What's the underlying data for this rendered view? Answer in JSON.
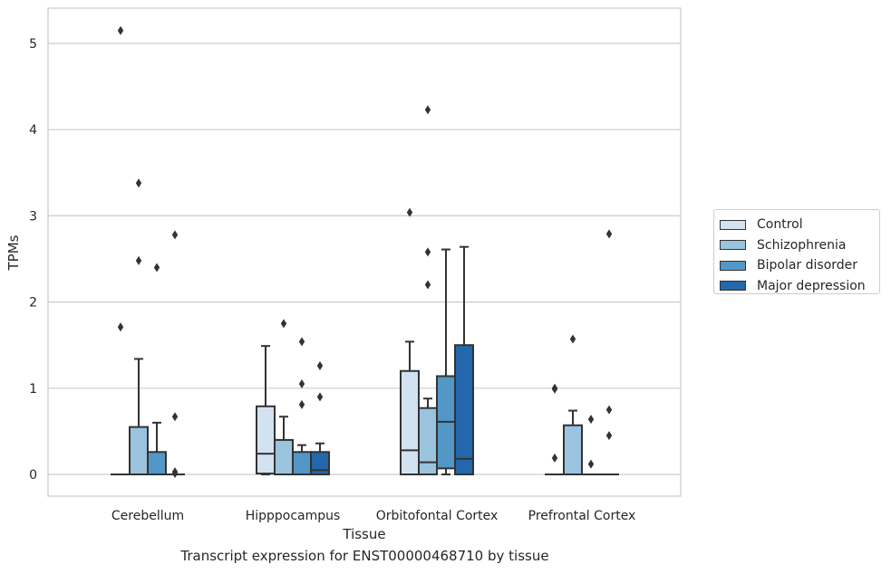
{
  "caption": "Transcript expression for ENST00000468710 by tissue",
  "chart_data": {
    "type": "box",
    "xlabel": "Tissue",
    "ylabel": "TPMs",
    "ylim": [
      -0.25,
      5.4
    ],
    "yticks": [
      0,
      1,
      2,
      3,
      4,
      5
    ],
    "grid": true,
    "legend_position": "right",
    "categories": [
      "Cerebellum",
      "Hipppocampus",
      "Orbitofontal Cortex",
      "Prefrontal Cortex"
    ],
    "series": [
      {
        "name": "Control",
        "color": "#d2e2f1",
        "boxes": [
          {
            "whislo": 0,
            "q1": 0,
            "med": 0,
            "q3": 0,
            "whishi": 0,
            "fliers": [
              5.15,
              1.71
            ]
          },
          {
            "whislo": 0,
            "q1": 0.01,
            "med": 0.24,
            "q3": 0.79,
            "whishi": 1.49,
            "fliers": []
          },
          {
            "whislo": 0,
            "q1": 0,
            "med": 0.28,
            "q3": 1.2,
            "whishi": 1.54,
            "fliers": [
              3.04
            ]
          },
          {
            "whislo": 0,
            "q1": 0,
            "med": 0,
            "q3": 0,
            "whishi": 0,
            "fliers": [
              1.0,
              0.99,
              0.19
            ]
          }
        ]
      },
      {
        "name": "Schizophrenia",
        "color": "#9ac3de",
        "boxes": [
          {
            "whislo": 0,
            "q1": 0,
            "med": 0,
            "q3": 0.55,
            "whishi": 1.34,
            "fliers": [
              3.38,
              2.48
            ]
          },
          {
            "whislo": 0,
            "q1": 0,
            "med": 0,
            "q3": 0.4,
            "whishi": 0.67,
            "fliers": [
              1.75
            ]
          },
          {
            "whislo": 0,
            "q1": 0,
            "med": 0.14,
            "q3": 0.77,
            "whishi": 0.88,
            "fliers": [
              4.23,
              2.58,
              2.2
            ]
          },
          {
            "whislo": 0,
            "q1": 0,
            "med": 0,
            "q3": 0.57,
            "whishi": 0.74,
            "fliers": [
              1.57
            ]
          }
        ]
      },
      {
        "name": "Bipolar disorder",
        "color": "#5297c6",
        "boxes": [
          {
            "whislo": 0,
            "q1": 0,
            "med": 0,
            "q3": 0.26,
            "whishi": 0.6,
            "fliers": [
              2.4
            ]
          },
          {
            "whislo": 0,
            "q1": 0,
            "med": 0,
            "q3": 0.26,
            "whishi": 0.34,
            "fliers": [
              1.54,
              1.05,
              0.81
            ]
          },
          {
            "whislo": 0,
            "q1": 0.07,
            "med": 0.61,
            "q3": 1.14,
            "whishi": 2.61,
            "fliers": []
          },
          {
            "whislo": 0,
            "q1": 0,
            "med": 0,
            "q3": 0,
            "whishi": 0,
            "fliers": [
              0.64,
              0.12
            ]
          }
        ]
      },
      {
        "name": "Major depression",
        "color": "#2467ad",
        "boxes": [
          {
            "whislo": 0,
            "q1": 0,
            "med": 0,
            "q3": 0,
            "whishi": 0,
            "fliers": [
              2.78,
              0.67,
              0.03,
              0.01
            ]
          },
          {
            "whislo": 0,
            "q1": 0,
            "med": 0.05,
            "q3": 0.26,
            "whishi": 0.36,
            "fliers": [
              1.26,
              0.9
            ]
          },
          {
            "whislo": 0,
            "q1": 0,
            "med": 0.18,
            "q3": 1.5,
            "whishi": 2.64,
            "fliers": []
          },
          {
            "whislo": 0,
            "q1": 0,
            "med": 0,
            "q3": 0,
            "whishi": 0,
            "fliers": [
              2.79,
              0.75,
              0.45
            ]
          }
        ]
      }
    ]
  }
}
